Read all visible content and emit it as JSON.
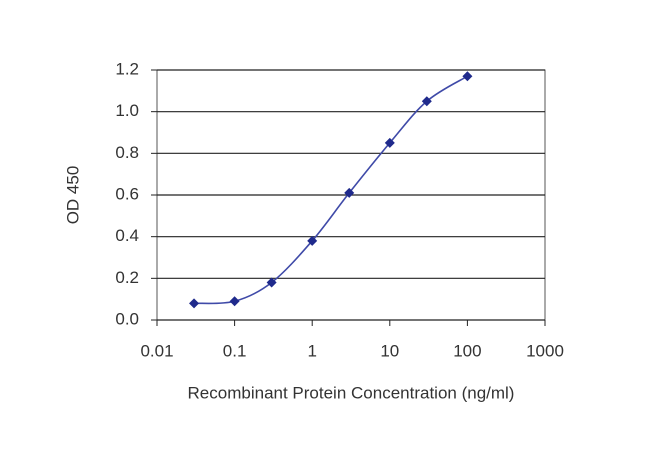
{
  "chart_data": {
    "type": "line",
    "x_label": "Recombinant Protein Concentration (ng/ml)",
    "y_label": "OD 450",
    "x": [
      0.03,
      0.1,
      0.3,
      1,
      3,
      10,
      30,
      100
    ],
    "values": [
      0.08,
      0.09,
      0.18,
      0.38,
      0.61,
      0.85,
      1.05,
      1.17
    ],
    "color": "#3f4aa8",
    "marker_color": "#1f2a8c",
    "xscale": "log",
    "xlim": [
      0.01,
      1000
    ],
    "xticks": [
      0.01,
      0.1,
      1,
      10,
      100,
      1000
    ],
    "ylim": [
      0,
      1.2
    ],
    "yticks": [
      {
        "value": 0,
        "label": "0.0"
      },
      0.2,
      0.4,
      0.6,
      0.8,
      {
        "value": 1,
        "label": "1.0"
      },
      1.2
    ],
    "grid": true
  }
}
